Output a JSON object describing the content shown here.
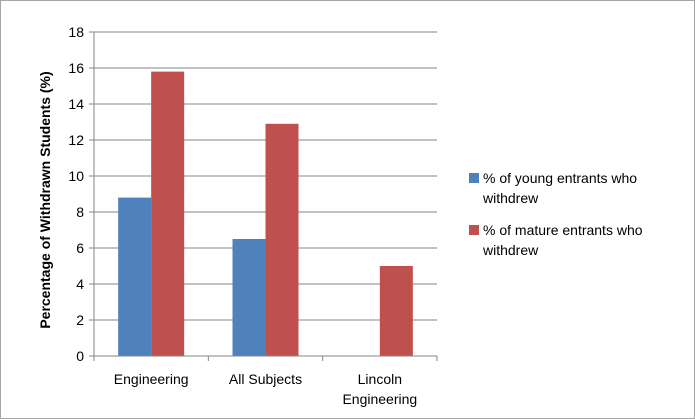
{
  "chart_data": {
    "type": "bar",
    "title": "",
    "xlabel": "",
    "ylabel": "Percentage of Withdrawn Students (%)",
    "ylim": [
      0,
      18
    ],
    "yticks": [
      0,
      2,
      4,
      6,
      8,
      10,
      12,
      14,
      16,
      18
    ],
    "grid": true,
    "legend_position": "right",
    "categories": [
      "Engineering",
      "All Subjects",
      "Lincoln\nEngineering"
    ],
    "series": [
      {
        "name": "% of young entrants who withdrew",
        "color": "#4f81bd",
        "values": [
          8.8,
          6.5,
          null
        ]
      },
      {
        "name": "% of mature entrants who withdrew",
        "color": "#c0504d",
        "values": [
          15.8,
          12.9,
          5.0
        ]
      }
    ]
  }
}
